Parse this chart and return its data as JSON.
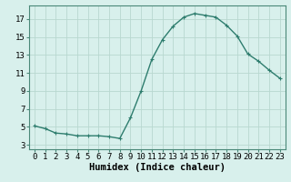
{
  "x": [
    0,
    1,
    2,
    3,
    4,
    5,
    6,
    7,
    8,
    9,
    10,
    11,
    12,
    13,
    14,
    15,
    16,
    17,
    18,
    19,
    20,
    21,
    22,
    23
  ],
  "y": [
    5.1,
    4.8,
    4.3,
    4.2,
    4.0,
    4.0,
    4.0,
    3.9,
    3.7,
    6.0,
    9.0,
    12.5,
    14.7,
    16.2,
    17.2,
    17.6,
    17.4,
    17.2,
    16.3,
    15.1,
    13.1,
    12.3,
    11.3,
    10.4
  ],
  "line_color": "#2e7d6e",
  "marker": "+",
  "marker_size": 3,
  "marker_linewidth": 0.8,
  "bg_color": "#d8f0ec",
  "grid_color": "#b8d8d0",
  "xlabel": "Humidex (Indice chaleur)",
  "xlabel_weight": "bold",
  "yticks": [
    3,
    5,
    7,
    9,
    11,
    13,
    15,
    17
  ],
  "xticks": [
    0,
    1,
    2,
    3,
    4,
    5,
    6,
    7,
    8,
    9,
    10,
    11,
    12,
    13,
    14,
    15,
    16,
    17,
    18,
    19,
    20,
    21,
    22,
    23
  ],
  "ylim": [
    2.5,
    18.5
  ],
  "xlim": [
    -0.5,
    23.5
  ],
  "tick_fontsize": 6.5,
  "xlabel_fontsize": 7.5,
  "spine_color": "#4a8878",
  "linewidth": 1.0
}
